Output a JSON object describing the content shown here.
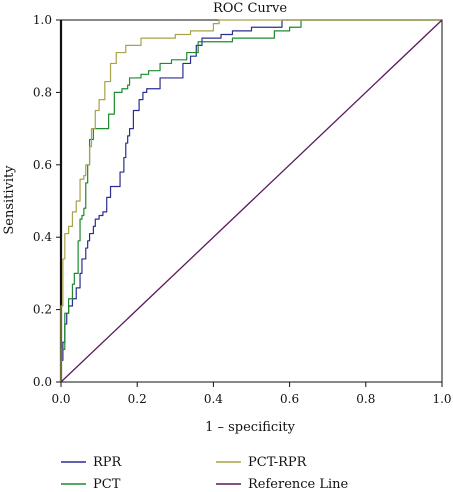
{
  "chart_data": {
    "type": "line",
    "title": "ROC Curve",
    "xlabel": "1 – specificity",
    "ylabel": "Sensitivity",
    "xlim": [
      0,
      1
    ],
    "ylim": [
      0,
      1
    ],
    "x_ticks": [
      "0.0",
      "0.2",
      "0.4",
      "0.6",
      "0.8",
      "1.0"
    ],
    "y_ticks": [
      "0.0",
      "0.2",
      "0.4",
      "0.6",
      "0.8",
      "1.0"
    ],
    "grid": false,
    "legend_position": "bottom",
    "series": [
      {
        "name": "RPR",
        "color": "#2b2f8f",
        "points": [
          [
            0.0,
            0.0
          ],
          [
            0.0,
            0.06
          ],
          [
            0.005,
            0.11
          ],
          [
            0.01,
            0.16
          ],
          [
            0.015,
            0.19
          ],
          [
            0.02,
            0.21
          ],
          [
            0.03,
            0.23
          ],
          [
            0.04,
            0.26
          ],
          [
            0.05,
            0.3
          ],
          [
            0.055,
            0.34
          ],
          [
            0.065,
            0.37
          ],
          [
            0.07,
            0.39
          ],
          [
            0.075,
            0.41
          ],
          [
            0.085,
            0.43
          ],
          [
            0.09,
            0.45
          ],
          [
            0.1,
            0.46
          ],
          [
            0.11,
            0.47
          ],
          [
            0.12,
            0.51
          ],
          [
            0.13,
            0.54
          ],
          [
            0.15,
            0.54
          ],
          [
            0.155,
            0.58
          ],
          [
            0.165,
            0.62
          ],
          [
            0.17,
            0.66
          ],
          [
            0.175,
            0.68
          ],
          [
            0.18,
            0.7
          ],
          [
            0.19,
            0.75
          ],
          [
            0.205,
            0.78
          ],
          [
            0.215,
            0.8
          ],
          [
            0.225,
            0.81
          ],
          [
            0.245,
            0.81
          ],
          [
            0.26,
            0.84
          ],
          [
            0.3,
            0.84
          ],
          [
            0.32,
            0.88
          ],
          [
            0.34,
            0.9
          ],
          [
            0.355,
            0.93
          ],
          [
            0.37,
            0.95
          ],
          [
            0.42,
            0.96
          ],
          [
            0.45,
            0.97
          ],
          [
            0.5,
            0.98
          ],
          [
            0.53,
            0.98
          ],
          [
            0.58,
            1.0
          ],
          [
            1.0,
            1.0
          ]
        ]
      },
      {
        "name": "PCT",
        "color": "#1e8a2e",
        "points": [
          [
            0.0,
            0.0
          ],
          [
            0.0,
            0.09
          ],
          [
            0.01,
            0.19
          ],
          [
            0.02,
            0.23
          ],
          [
            0.03,
            0.27
          ],
          [
            0.035,
            0.3
          ],
          [
            0.045,
            0.39
          ],
          [
            0.05,
            0.45
          ],
          [
            0.055,
            0.46
          ],
          [
            0.06,
            0.48
          ],
          [
            0.065,
            0.55
          ],
          [
            0.07,
            0.6
          ],
          [
            0.075,
            0.67
          ],
          [
            0.085,
            0.7
          ],
          [
            0.115,
            0.7
          ],
          [
            0.125,
            0.74
          ],
          [
            0.14,
            0.8
          ],
          [
            0.16,
            0.81
          ],
          [
            0.175,
            0.82
          ],
          [
            0.18,
            0.84
          ],
          [
            0.21,
            0.85
          ],
          [
            0.23,
            0.86
          ],
          [
            0.26,
            0.88
          ],
          [
            0.29,
            0.89
          ],
          [
            0.33,
            0.91
          ],
          [
            0.36,
            0.94
          ],
          [
            0.38,
            0.94
          ],
          [
            0.45,
            0.95
          ],
          [
            0.52,
            0.95
          ],
          [
            0.56,
            0.97
          ],
          [
            0.6,
            0.98
          ],
          [
            0.63,
            1.0
          ],
          [
            1.0,
            1.0
          ]
        ]
      },
      {
        "name": "PCT-RPR",
        "color": "#a8a24a",
        "points": [
          [
            0.0,
            0.0
          ],
          [
            0.0,
            0.21
          ],
          [
            0.005,
            0.34
          ],
          [
            0.01,
            0.41
          ],
          [
            0.02,
            0.43
          ],
          [
            0.03,
            0.47
          ],
          [
            0.04,
            0.5
          ],
          [
            0.05,
            0.56
          ],
          [
            0.06,
            0.57
          ],
          [
            0.065,
            0.6
          ],
          [
            0.075,
            0.65
          ],
          [
            0.08,
            0.7
          ],
          [
            0.09,
            0.75
          ],
          [
            0.1,
            0.78
          ],
          [
            0.115,
            0.83
          ],
          [
            0.13,
            0.88
          ],
          [
            0.145,
            0.91
          ],
          [
            0.17,
            0.93
          ],
          [
            0.21,
            0.95
          ],
          [
            0.25,
            0.95
          ],
          [
            0.3,
            0.96
          ],
          [
            0.34,
            0.97
          ],
          [
            0.38,
            0.97
          ],
          [
            0.4,
            0.99
          ],
          [
            0.415,
            1.0
          ],
          [
            1.0,
            1.0
          ]
        ]
      },
      {
        "name": "Reference Line",
        "color": "#5a1a5e",
        "points": [
          [
            0.0,
            0.0
          ],
          [
            1.0,
            1.0
          ]
        ]
      }
    ]
  }
}
